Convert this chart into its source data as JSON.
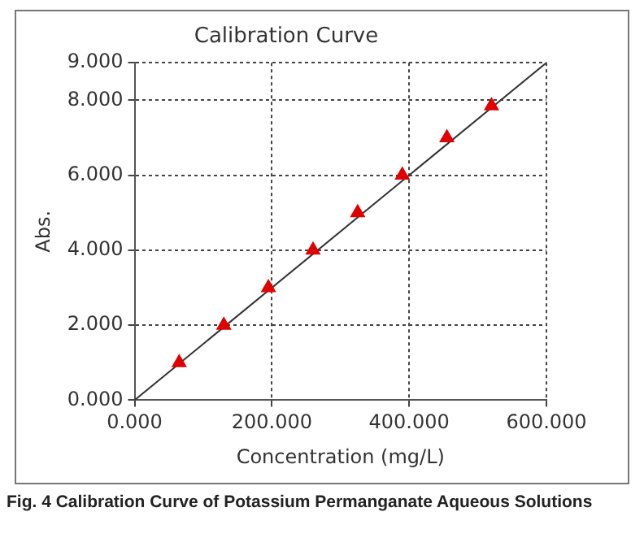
{
  "chart_data": {
    "type": "scatter",
    "title": "Calibration Curve",
    "xlabel": "Concentration (mg/L)",
    "ylabel": "Abs.",
    "series": [
      {
        "color": "#e00000",
        "x": [
          65,
          130,
          195,
          260,
          325,
          390,
          455,
          520
        ],
        "values": [
          1,
          2,
          3,
          4,
          5,
          6,
          7,
          7.85
        ],
        "marker": "triangle"
      },
      {
        "type": "line",
        "color": "#333333",
        "x": [
          0,
          600
        ],
        "values": [
          0,
          9
        ],
        "marker": "none",
        "line_style": "solid"
      }
    ],
    "xlim": [
      0,
      600
    ],
    "xticks": [
      {
        "value": 0,
        "label": "0.000"
      },
      {
        "value": 200,
        "label": "200.000"
      },
      {
        "value": 400,
        "label": "400.000"
      },
      {
        "value": 600,
        "label": "600.000"
      }
    ],
    "ylim": [
      0,
      9
    ],
    "yticks": [
      {
        "value": 0,
        "label": "0.000"
      },
      {
        "value": 2,
        "label": "2.000"
      },
      {
        "value": 4,
        "label": "4.000"
      },
      {
        "value": 6,
        "label": "6.000"
      },
      {
        "value": 8,
        "label": "8.000"
      },
      {
        "value": 9,
        "label": "9.000"
      }
    ],
    "grid": true,
    "legend": false,
    "annotations": [
      "Fig. 4  Calibration Curve of Potassium Permanganate Aqueous Solutions"
    ]
  }
}
